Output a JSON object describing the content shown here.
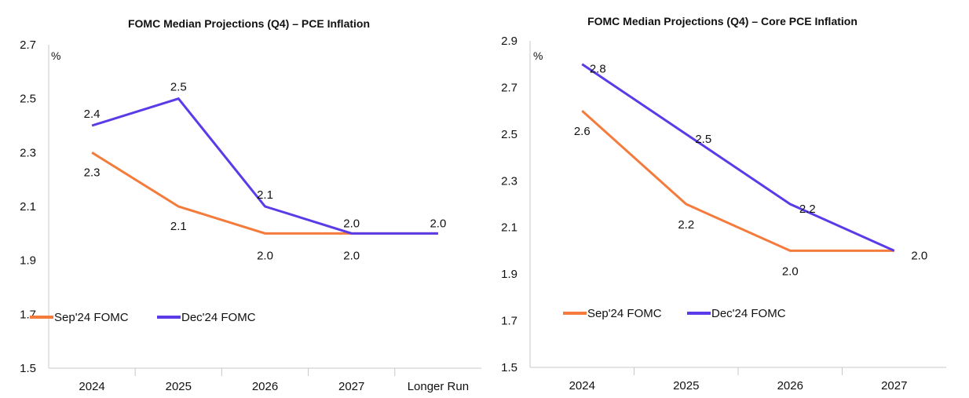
{
  "chart_data": [
    {
      "type": "line",
      "title": "FOMC Median Projections (Q4) – PCE Inflation",
      "unit_label": "%",
      "categories": [
        "2024",
        "2025",
        "2026",
        "2027",
        "Longer Run"
      ],
      "ylim": [
        1.5,
        2.7
      ],
      "yticks": [
        "1.5",
        "1.7",
        "1.9",
        "2.1",
        "2.3",
        "2.5",
        "2.7"
      ],
      "grid": false,
      "legend": "bottom-left",
      "series": [
        {
          "name": "Sep'24 FOMC",
          "color": "#F47B3C",
          "values": [
            2.3,
            2.1,
            2.0,
            2.0,
            2.0
          ],
          "labels": [
            "2.3",
            "2.1",
            "2.0",
            "2.0",
            ""
          ]
        },
        {
          "name": "Dec'24 FOMC",
          "color": "#5B3BE8",
          "values": [
            2.4,
            2.5,
            2.1,
            2.0,
            2.0
          ],
          "labels": [
            "2.4",
            "2.5",
            "2.1",
            "2.0",
            "2.0"
          ]
        }
      ]
    },
    {
      "type": "line",
      "title": "FOMC Median Projections (Q4) – Core PCE Inflation",
      "unit_label": "%",
      "categories": [
        "2024",
        "2025",
        "2026",
        "2027"
      ],
      "ylim": [
        1.5,
        2.9
      ],
      "yticks": [
        "1.5",
        "1.7",
        "1.9",
        "2.1",
        "2.3",
        "2.5",
        "2.7",
        "2.9"
      ],
      "grid": false,
      "legend": "bottom-left",
      "series": [
        {
          "name": "Sep'24 FOMC",
          "color": "#F47B3C",
          "values": [
            2.6,
            2.2,
            2.0,
            2.0
          ],
          "labels": [
            "2.6",
            "2.2",
            "2.0",
            ""
          ]
        },
        {
          "name": "Dec'24 FOMC",
          "color": "#5B3BE8",
          "values": [
            2.8,
            2.5,
            2.2,
            2.0
          ],
          "labels": [
            "2.8",
            "2.5",
            "2.2",
            "2.0"
          ]
        }
      ]
    }
  ]
}
